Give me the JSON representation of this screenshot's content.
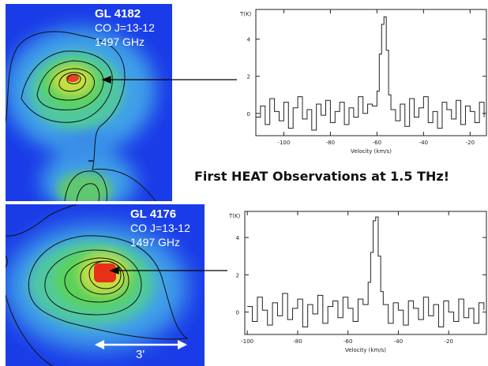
{
  "headline": "First HEAT Observations at 1.5 THz!",
  "sources": [
    {
      "name": "GL 4182",
      "line": "CO J=13-12",
      "freq": "1497 GHz"
    },
    {
      "name": "GL 4176",
      "line": "CO J=13-12",
      "freq": "1497 GHz"
    }
  ],
  "scale_bar_label": "3'",
  "colors": {
    "map_low": "#1838e8",
    "map_mid": "#44d060",
    "map_high": "#e83018",
    "spectrum_line": "#222222",
    "arrow": "#000000"
  },
  "chart_data": [
    {
      "type": "line",
      "title": "",
      "source": "GL 4182",
      "xlabel": "Velocity (km/s)",
      "ylabel": "T(K)",
      "xlim": [
        -112,
        -13
      ],
      "ylim": [
        -1.2,
        5.6
      ],
      "xticks": [
        -100,
        -80,
        -60,
        -40,
        -20
      ],
      "yticks": [
        0,
        2,
        4
      ],
      "series": [
        {
          "x": [
            -112,
            -110,
            -108,
            -106,
            -104,
            -102,
            -100,
            -98,
            -96,
            -94,
            -92,
            -90,
            -88,
            -86,
            -84,
            -82,
            -80,
            -78,
            -76,
            -74,
            -72,
            -70,
            -68,
            -66,
            -64,
            -62,
            -60,
            -59,
            -58,
            -57,
            -56,
            -55,
            -54,
            -52,
            -50,
            -48,
            -46,
            -44,
            -42,
            -40,
            -38,
            -36,
            -34,
            -32,
            -30,
            -28,
            -26,
            -24,
            -22,
            -20,
            -18,
            -16,
            -14
          ],
          "y": [
            -0.2,
            0.4,
            -0.6,
            0.8,
            0.1,
            -0.4,
            0.6,
            -0.8,
            0.3,
            0.9,
            -0.3,
            0.2,
            -0.9,
            0.5,
            -0.1,
            0.7,
            -0.5,
            0.1,
            0.6,
            -0.6,
            0.3,
            -0.2,
            0.9,
            0.0,
            0.5,
            0.4,
            1.2,
            3.2,
            4.8,
            5.2,
            3.4,
            1.0,
            0.2,
            -0.4,
            0.5,
            -0.7,
            0.8,
            -0.2,
            0.3,
            0.9,
            -0.5,
            0.1,
            -0.8,
            0.6,
            0.2,
            -0.3,
            0.7,
            -0.6,
            0.4,
            0.1,
            -0.5,
            0.6,
            -0.2
          ]
        }
      ]
    },
    {
      "type": "line",
      "title": "",
      "source": "GL 4176",
      "xlabel": "Velocity (km/s)",
      "ylabel": "T(K)",
      "xlim": [
        -101,
        -5
      ],
      "ylim": [
        -1.2,
        5.4
      ],
      "xticks": [
        -100,
        -80,
        -60,
        -40,
        -20
      ],
      "yticks": [
        0,
        2,
        4
      ],
      "series": [
        {
          "x": [
            -100,
            -98,
            -96,
            -94,
            -92,
            -90,
            -88,
            -86,
            -84,
            -82,
            -80,
            -78,
            -76,
            -74,
            -72,
            -70,
            -68,
            -66,
            -64,
            -62,
            -60,
            -58,
            -56,
            -54,
            -52,
            -51,
            -50,
            -49,
            -48,
            -47,
            -46,
            -44,
            -42,
            -40,
            -38,
            -36,
            -34,
            -32,
            -30,
            -28,
            -26,
            -24,
            -22,
            -20,
            -18,
            -16,
            -14,
            -12,
            -10,
            -8,
            -6
          ],
          "y": [
            0.3,
            -0.5,
            0.8,
            0.1,
            -0.7,
            0.5,
            -0.2,
            1.0,
            -0.4,
            0.2,
            0.7,
            -0.8,
            0.4,
            -0.1,
            0.9,
            -0.6,
            0.3,
            0.6,
            -0.3,
            0.8,
            0.2,
            -0.5,
            0.7,
            0.4,
            1.6,
            3.2,
            4.9,
            5.1,
            3.0,
            1.1,
            0.4,
            -0.6,
            0.5,
            0.1,
            -0.7,
            0.6,
            0.2,
            -0.4,
            0.8,
            -0.2,
            0.4,
            -0.8,
            0.6,
            0.0,
            -0.5,
            0.7,
            -0.3,
            0.2,
            -0.6,
            0.5,
            0.1
          ]
        }
      ]
    }
  ]
}
